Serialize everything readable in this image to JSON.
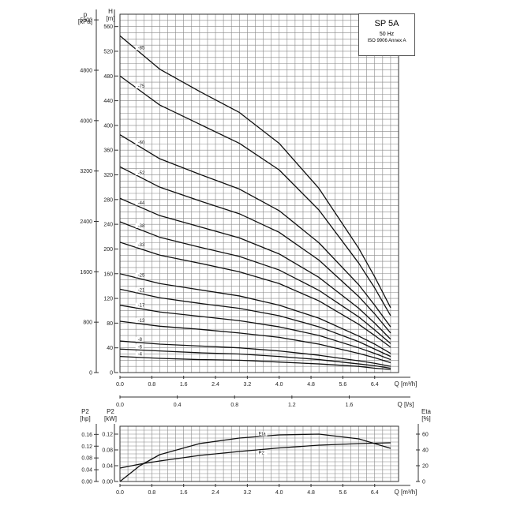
{
  "title_box": {
    "model": "SP 5A",
    "frequency": "50 Hz",
    "standard": "ISO 9906 Annex A"
  },
  "axis_labels": {
    "p_top": "p",
    "p_unit": "[kPa]",
    "h_top": "H",
    "h_unit": "[m]",
    "q_m3h": "Q [m³/h]",
    "q_ls": "Q [l/s]",
    "p2_hp": "P2",
    "p2_hp_unit": "[hp]",
    "p2_kw": "P2",
    "p2_kw_unit": "[kW]",
    "eta": "Eta",
    "eta_unit": "[%]"
  },
  "chart_data": [
    {
      "type": "line",
      "title": "SP 5A",
      "xlabel": "Q [m³/h]",
      "ylabel": "H [m]",
      "xlim": [
        0,
        7.0
      ],
      "ylim": [
        0,
        580
      ],
      "x_ticks": [
        "0.0",
        "0.8",
        "1.6",
        "2.4",
        "3.2",
        "4.0",
        "4.8",
        "5.6",
        "6.4"
      ],
      "y_ticks": [
        "0",
        "40",
        "80",
        "120",
        "160",
        "200",
        "240",
        "280",
        "320",
        "360",
        "400",
        "440",
        "480",
        "520",
        "560"
      ],
      "secondary_y": {
        "label": "p [kPa]",
        "ticks": [
          "0",
          "800",
          "1600",
          "2400",
          "3200",
          "4000",
          "4800",
          "5600"
        ]
      },
      "secondary_x": {
        "label": "Q [l/s]",
        "ticks": [
          "0.0",
          "0.4",
          "0.8",
          "1.2",
          "1.6"
        ]
      },
      "x": [
        0,
        1,
        2,
        3,
        4,
        5,
        6,
        6.4,
        6.8
      ],
      "series": [
        {
          "name": "85",
          "values": [
            545,
            491,
            455,
            421,
            371,
            298,
            201,
            155,
            105
          ]
        },
        {
          "name": "75",
          "values": [
            480,
            433,
            402,
            371,
            328,
            263,
            177,
            137,
            92
          ]
        },
        {
          "name": "60",
          "values": [
            385,
            346,
            321,
            297,
            262,
            210,
            142,
            109,
            74
          ]
        },
        {
          "name": "52",
          "values": [
            333,
            300,
            278,
            257,
            227,
            182,
            123,
            95,
            64
          ]
        },
        {
          "name": "44",
          "values": [
            282,
            254,
            236,
            218,
            192,
            154,
            104,
            80,
            54
          ]
        },
        {
          "name": "38",
          "values": [
            244,
            219,
            203,
            188,
            166,
            133,
            90,
            69,
            47
          ]
        },
        {
          "name": "33",
          "values": [
            211,
            190,
            177,
            163,
            144,
            116,
            78,
            60,
            41
          ]
        },
        {
          "name": "25",
          "values": [
            160,
            144,
            134,
            124,
            109,
            88,
            59,
            46,
            31
          ]
        },
        {
          "name": "21",
          "values": [
            135,
            121,
            112,
            104,
            92,
            74,
            50,
            38,
            26
          ]
        },
        {
          "name": "17",
          "values": [
            109,
            98,
            91,
            84,
            74,
            60,
            40,
            31,
            21
          ]
        },
        {
          "name": "13",
          "values": [
            83,
            75,
            70,
            64,
            57,
            46,
            31,
            24,
            16
          ]
        },
        {
          "name": "8",
          "values": [
            51,
            46,
            43,
            40,
            35,
            28,
            19,
            15,
            10
          ]
        },
        {
          "name": "6",
          "values": [
            38,
            35,
            32,
            30,
            26,
            21,
            14,
            11,
            7
          ]
        },
        {
          "name": "4",
          "values": [
            26,
            23,
            21,
            20,
            17,
            14,
            10,
            7,
            5
          ]
        }
      ]
    },
    {
      "type": "line",
      "xlabel": "Q [m³/h]",
      "ylabel": "P2 [kW]",
      "xlim": [
        0,
        7.0
      ],
      "ylim": [
        0,
        0.14
      ],
      "x_ticks": [
        "0.0",
        "0.8",
        "1.6",
        "2.4",
        "3.2",
        "4.0",
        "4.8",
        "5.6",
        "6.4"
      ],
      "y_ticks": [
        "0.00",
        "0.04",
        "0.08",
        "0.12"
      ],
      "secondary_y_left": {
        "label": "P2 [hp]",
        "ticks": [
          "0.00",
          "0.04",
          "0.08",
          "0.12",
          "0.16"
        ]
      },
      "secondary_y_right": {
        "label": "Eta [%]",
        "ticks": [
          "0",
          "20",
          "40",
          "60"
        ]
      },
      "x": [
        0,
        0.5,
        1,
        2,
        3,
        4,
        5,
        6,
        6.8
      ],
      "series": [
        {
          "name": "Eta",
          "axis": "Eta [%]",
          "values": [
            0,
            20,
            34,
            48,
            55,
            59,
            60,
            54,
            42
          ]
        },
        {
          "name": "P2",
          "axis": "P2 [kW]",
          "values": [
            0.034,
            0.044,
            0.052,
            0.066,
            0.076,
            0.085,
            0.092,
            0.096,
            0.098
          ]
        }
      ]
    }
  ]
}
